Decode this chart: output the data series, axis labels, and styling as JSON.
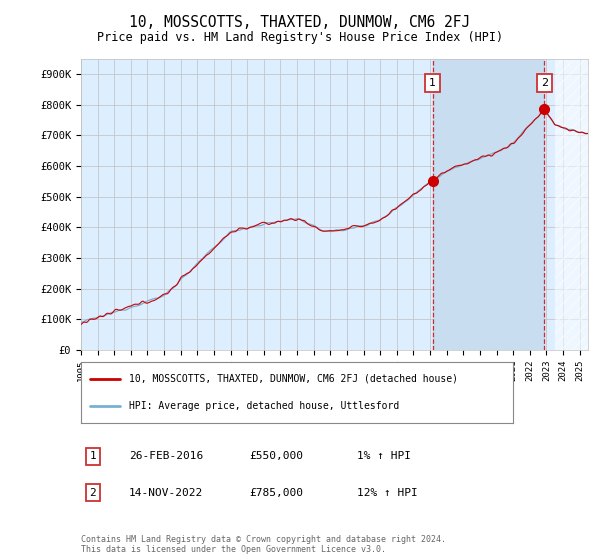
{
  "title": "10, MOSSCOTTS, THAXTED, DUNMOW, CM6 2FJ",
  "subtitle": "Price paid vs. HM Land Registry's House Price Index (HPI)",
  "ylim": [
    0,
    950000
  ],
  "yticks": [
    0,
    100000,
    200000,
    300000,
    400000,
    500000,
    600000,
    700000,
    800000,
    900000
  ],
  "ytick_labels": [
    "£0",
    "£100K",
    "£200K",
    "£300K",
    "£400K",
    "£500K",
    "£600K",
    "£700K",
    "£800K",
    "£900K"
  ],
  "hpi_color": "#7ab0d4",
  "price_color": "#cc0000",
  "plot_bg": "#ddeeff",
  "highlight_color": "#c8ddf0",
  "marker1_date_x": 2016.15,
  "marker1_price": 550000,
  "marker2_date_x": 2022.87,
  "marker2_price": 785000,
  "legend_line1": "10, MOSSCOTTS, THAXTED, DUNMOW, CM6 2FJ (detached house)",
  "legend_line2": "HPI: Average price, detached house, Uttlesford",
  "annotation1_date": "26-FEB-2016",
  "annotation1_price": "£550,000",
  "annotation1_hpi": "1% ↑ HPI",
  "annotation2_date": "14-NOV-2022",
  "annotation2_price": "£785,000",
  "annotation2_hpi": "12% ↑ HPI",
  "footer": "Contains HM Land Registry data © Crown copyright and database right 2024.\nThis data is licensed under the Open Government Licence v3.0.",
  "xmin": 1995,
  "xmax": 2025.5
}
